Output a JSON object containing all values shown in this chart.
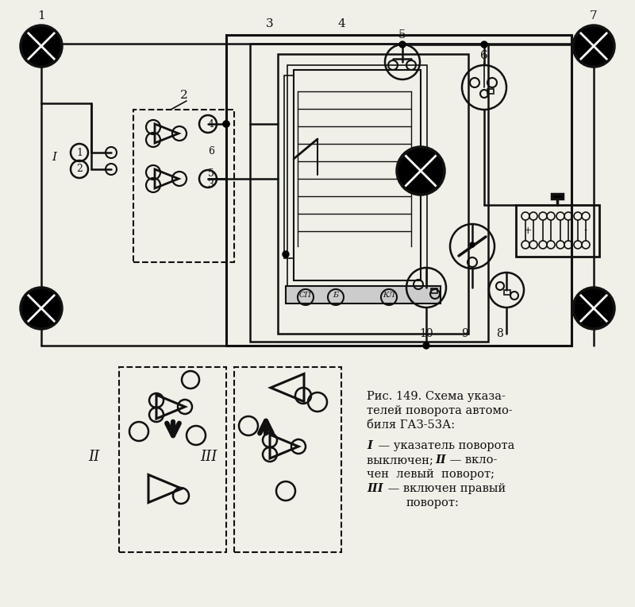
{
  "bg_color": "#f0efe8",
  "line_color": "#111111",
  "fig_width": 8.0,
  "fig_height": 7.64,
  "dpi": 100,
  "caption_line1": "Рис. 149. Схема указа-",
  "caption_line2": "телей поворота автомо-",
  "caption_line3": "биля ГАЗ-53А:",
  "caption_line4": "I — указатель поворота",
  "caption_line5": "выключен;  II — вкло-",
  "caption_line6": "чен  левый  поворот;",
  "caption_line7": "III — включен правый",
  "caption_line8": "поворот:"
}
